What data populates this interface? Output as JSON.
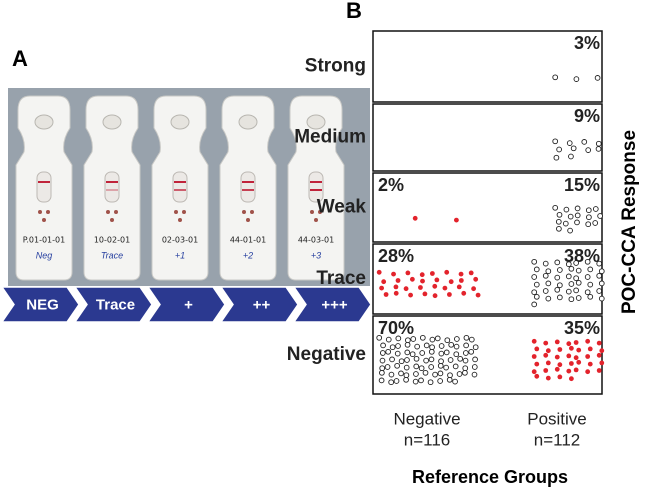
{
  "panel_a": {
    "label": "A",
    "strips": [
      {
        "id": "P.01-01-01",
        "note": "Neg"
      },
      {
        "id": "10-02-01",
        "note": "Trace"
      },
      {
        "id": "02-03-01",
        "note": "+1"
      },
      {
        "id": "44-01-01",
        "note": "+2"
      },
      {
        "id": "44-03-01",
        "note": "+3"
      }
    ],
    "arrows": [
      "NEG",
      "Trace",
      "+",
      "++",
      "+++"
    ]
  },
  "panel_b": {
    "label": "B",
    "y_title": "POC-CCA Response",
    "x_title": "Reference Groups",
    "rows": [
      "Strong",
      "Medium",
      "Weak",
      "Trace",
      "Negative"
    ],
    "groups": [
      {
        "name": "Negative",
        "n": "n=116",
        "cells": [
          null,
          null,
          {
            "value": 2,
            "label": "2%",
            "dots": 2,
            "color": "#e3232c"
          },
          {
            "value": 28,
            "label": "28%",
            "dots": 32,
            "color": "#e3232c"
          },
          {
            "value": 70,
            "label": "70%",
            "dots": 82,
            "color": "#222222"
          }
        ]
      },
      {
        "name": "Positive",
        "n": "n=112",
        "cells": [
          {
            "value": 3,
            "label": "3%",
            "dots": 3,
            "color": "#222222"
          },
          {
            "value": 9,
            "label": "9%",
            "dots": 10,
            "color": "#222222"
          },
          {
            "value": 15,
            "label": "15%",
            "dots": 17,
            "color": "#222222"
          },
          {
            "value": 38,
            "label": "38%",
            "dots": 43,
            "color": "#222222"
          },
          {
            "value": 35,
            "label": "35%",
            "dots": 39,
            "color": "#e3232c"
          }
        ]
      }
    ]
  }
}
